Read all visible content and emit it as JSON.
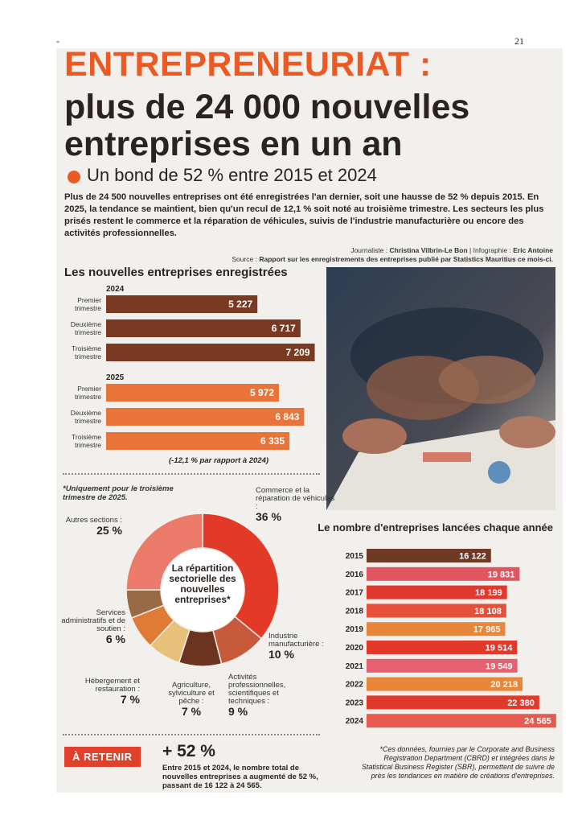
{
  "page": {
    "marker": "-",
    "number": "21"
  },
  "title": {
    "line1": "ENTREPRENEURIAT :",
    "line2": "plus de 24 000 nouvelles",
    "line3": "entreprises en un an"
  },
  "subtitle": "Un bond de 52 % entre 2015 et 2024",
  "intro": "Plus de 24 500 nouvelles entreprises ont été enregistrées l'an dernier, soit une hausse de 52 % depuis 2015. En 2025, la tendance se maintient, bien qu'un recul de 12,1 % soit noté au troisième trimestre. Les secteurs les plus prisés restent le commerce et la réparation de véhicules, suivis de l'industrie manufacturière ou encore des activités professionnelles.",
  "credits": {
    "journalist_label": "Journaliste :",
    "journalist": "Christina Vilbrin-Le Bon",
    "infographic_label": "| Infographie :",
    "infographic": "Eric Antoine",
    "source_label": "Source :",
    "source": "Rapport sur les enregistrements des entreprises publié par Statistics Mauritius ce mois-ci."
  },
  "colors": {
    "accent": "#ec5a24",
    "bar2024": "#7a3a22",
    "bar2025": "#e8743a",
    "retenir": "#e1412a"
  },
  "photo_icon": "business-handshake-photo",
  "chart_data": [
    {
      "type": "bar",
      "orientation": "horizontal",
      "title": "Les nouvelles entreprises enregistrées",
      "groups": [
        {
          "year": "2024",
          "categories": [
            "Premier trimestre",
            "Deuxième trimestre",
            "Troisième trimestre"
          ],
          "values": [
            5227,
            6717,
            7209
          ],
          "labels": [
            "5 227",
            "6 717",
            "7 209"
          ]
        },
        {
          "year": "2025",
          "categories": [
            "Premier trimestre",
            "Deuxième trimestre",
            "Troisième trimestre"
          ],
          "values": [
            5972,
            6843,
            6335
          ],
          "labels": [
            "5 972",
            "6 843",
            "6 335"
          ]
        }
      ],
      "note": "(-12,1 % par rapport à 2024)",
      "xlim": [
        0,
        7500
      ]
    },
    {
      "type": "pie",
      "variant": "donut",
      "title": "La répartition sectorielle des nouvelles entreprises*",
      "note": "*Uniquement pour le troisième trimestre de 2025.",
      "slices": [
        {
          "label": "Commerce et la réparation de véhicules :",
          "value": 36,
          "pct": "36 %",
          "color": "#e23a26"
        },
        {
          "label": "Industrie manufacturière :",
          "value": 10,
          "pct": "10 %",
          "color": "#c85a3c"
        },
        {
          "label": "Activités professionnelles, scientifiques et techniques :",
          "value": 9,
          "pct": "9 %",
          "color": "#6a3420"
        },
        {
          "label": "Agriculture, sylviculture et pêche :",
          "value": 7,
          "pct": "7 %",
          "color": "#e8c07a"
        },
        {
          "label": "Hébergement et restauration :",
          "value": 7,
          "pct": "7 %",
          "color": "#e07a35"
        },
        {
          "label": "Services administratifs et de soutien :",
          "value": 6,
          "pct": "6 %",
          "color": "#9a6a45"
        },
        {
          "label": "Autres sections :",
          "value": 25,
          "pct": "25 %",
          "color": "#ec7b6c"
        }
      ]
    },
    {
      "type": "bar",
      "orientation": "horizontal",
      "title": "Le nombre d'entreprises lancées chaque année",
      "categories": [
        "2015",
        "2016",
        "2017",
        "2018",
        "2019",
        "2020",
        "2021",
        "2022",
        "2023",
        "2024"
      ],
      "values": [
        16122,
        19831,
        18199,
        18108,
        17965,
        19514,
        19549,
        20218,
        22380,
        24565
      ],
      "labels": [
        "16 122",
        "19 831",
        "18 199",
        "18 108",
        "17 965",
        "19 514",
        "19 549",
        "20 218",
        "22 380",
        "24 565"
      ],
      "colors": [
        "#6e3a26",
        "#e05560",
        "#e03a30",
        "#e4503a",
        "#e8863a",
        "#e23a2a",
        "#e66070",
        "#e8863a",
        "#e03a2a",
        "#e85a50"
      ],
      "xlim": [
        0,
        25000
      ]
    }
  ],
  "footnote": "*Ces données, fournies par le Corporate and Business Registration Department (CBRD) et intégrées dans le Statistical Business Register (SBR), permettent de suivre de près les tendances en matière de créations d'entreprises.",
  "retenir": {
    "badge": "À RETENIR",
    "big": "+ 52 %",
    "text": "Entre 2015 et 2024, le nombre total de nouvelles entreprises a augmenté de 52 %, passant de 16 122 à 24 565."
  }
}
